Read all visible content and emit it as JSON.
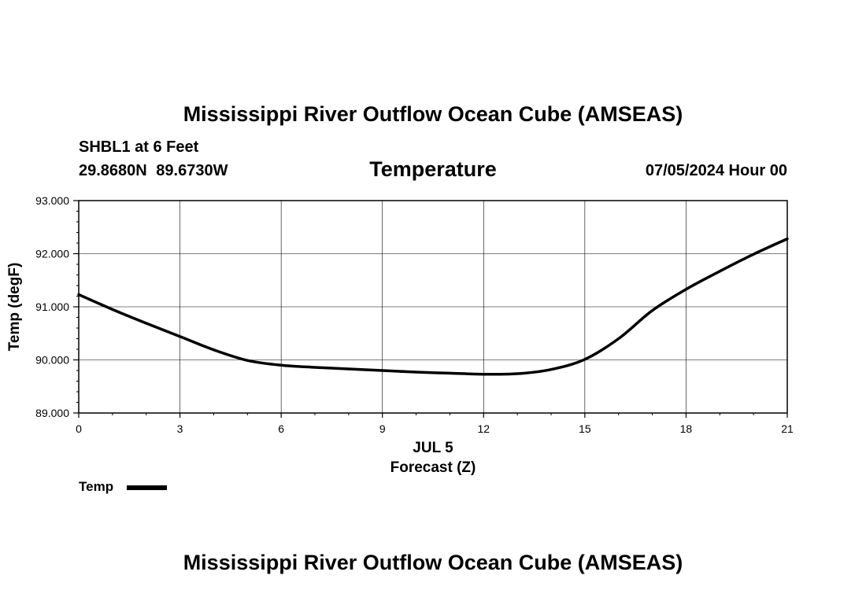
{
  "header": {
    "title": "Mississippi River Outflow Ocean Cube (AMSEAS)",
    "station": "SHBL1 at 6 Feet",
    "coords": "29.8680N  89.6730W",
    "parameter": "Temperature",
    "datetime": "07/05/2024 Hour 00"
  },
  "footer": {
    "title": "Mississippi River Outflow Ocean Cube (AMSEAS)"
  },
  "legend": {
    "label": "Temp"
  },
  "chart_data": {
    "type": "line",
    "title": "Temperature",
    "xlabel": "Forecast (Z)",
    "xlabel_date": "JUL 5",
    "ylabel": "Temp (degF)",
    "xlim": [
      0,
      21
    ],
    "ylim": [
      89,
      93
    ],
    "xticks": [
      "0",
      "3",
      "6",
      "9",
      "12",
      "15",
      "18",
      "21"
    ],
    "yticks": [
      "89.000",
      "90.000",
      "91.000",
      "92.000",
      "93.000"
    ],
    "grid": true,
    "legend_position": "bottom-left",
    "series": [
      {
        "name": "Temp",
        "color": "#000000",
        "x": [
          0,
          1,
          2,
          3,
          4,
          5,
          6,
          7,
          8,
          9,
          10,
          11,
          12,
          13,
          14,
          15,
          16,
          17,
          18,
          19,
          20,
          21
        ],
        "values": [
          91.23,
          90.95,
          90.69,
          90.44,
          90.19,
          89.99,
          89.9,
          89.86,
          89.83,
          89.8,
          89.77,
          89.75,
          89.73,
          89.74,
          89.82,
          90.01,
          90.4,
          90.93,
          91.33,
          91.67,
          91.99,
          92.28
        ]
      }
    ]
  }
}
